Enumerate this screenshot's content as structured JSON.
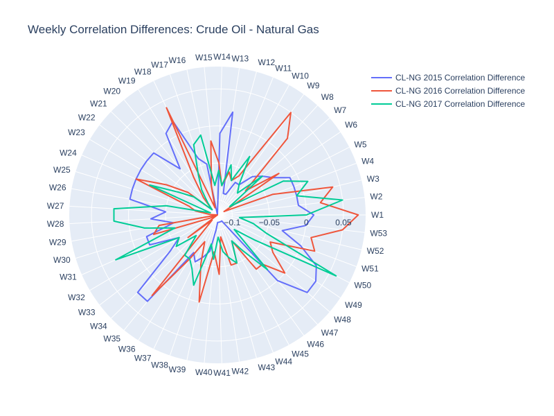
{
  "chart_data": {
    "type": "polar_line",
    "title": "Weekly Correlation Differences: Crude Oil - Natural Gas",
    "radial_range": [
      -0.12,
      0.08
    ],
    "radial_ticks": [
      -0.1,
      -0.05,
      0,
      0.05
    ],
    "radial_tick_labels": [
      "−0.1",
      "−0.05",
      "0",
      "0.05"
    ],
    "theta_direction": "counterclockwise",
    "theta_start": "W1 at east",
    "theta": [
      "W1",
      "W2",
      "W3",
      "W4",
      "W5",
      "W6",
      "W7",
      "W8",
      "W9",
      "W10",
      "W11",
      "W12",
      "W13",
      "W14",
      "W15",
      "W16",
      "W17",
      "W18",
      "W19",
      "W20",
      "W21",
      "W22",
      "W23",
      "W24",
      "W25",
      "W26",
      "W27",
      "W28",
      "W29",
      "W30",
      "W31",
      "W32",
      "W33",
      "W34",
      "W35",
      "W36",
      "W37",
      "W38",
      "W39",
      "W40",
      "W41",
      "W42",
      "W43",
      "W44",
      "W45",
      "W46",
      "W47",
      "W48",
      "W49",
      "W50",
      "W51",
      "W52",
      "W53"
    ],
    "series": [
      {
        "name": "CL-NG 2015 Correlation Difference",
        "color": "#636efa",
        "values": [
          0.01,
          -0.01,
          -0.01,
          -0.01,
          -0.01,
          -0.03,
          -0.04,
          -0.05,
          -0.07,
          -0.07,
          -0.09,
          -0.09,
          0.02,
          -0.01,
          -0.12,
          -0.05,
          -0.04,
          0.02,
          0.01,
          -0.04,
          0.0,
          0.0,
          0.0,
          0.0,
          0.0,
          0.0,
          -0.05,
          -0.03,
          -0.06,
          -0.02,
          -0.02,
          -0.06,
          -0.04,
          0.03,
          0.03,
          -0.06,
          -0.05,
          -0.06,
          -0.07,
          -0.1,
          -0.11,
          -0.11,
          -0.11,
          -0.11,
          -0.11,
          -0.11,
          0.0,
          0.04,
          0.04,
          0.03,
          0.0,
          -0.03,
          0.0
        ]
      },
      {
        "name": "CL-NG 2016 Correlation Difference",
        "color": "#ef553b",
        "values": [
          0.07,
          0.02,
          0.04,
          -0.04,
          -0.11,
          -0.02,
          -0.07,
          0.02,
          0.05,
          -0.06,
          -0.07,
          -0.06,
          -0.08,
          -0.05,
          -0.02,
          -0.08,
          -0.11,
          0.04,
          -0.06,
          -0.09,
          -0.11,
          -0.07,
          -0.04,
          0.0,
          -0.08,
          -0.09,
          -0.11,
          -0.12,
          -0.04,
          -0.03,
          -0.11,
          -0.12,
          -0.07,
          -0.11,
          0.02,
          -0.05,
          -0.08,
          -0.05,
          0.0,
          -0.07,
          -0.04,
          -0.09,
          -0.05,
          -0.05,
          -0.08,
          -0.03,
          -0.03,
          0.0,
          -0.03,
          -0.04,
          0.02,
          0.01,
          0.05
        ]
      },
      {
        "name": "CL-NG 2017 Correlation Difference",
        "color": "#00cc96",
        "values": [
          0.0,
          0.05,
          -0.01,
          0.01,
          -0.02,
          -0.1,
          -0.04,
          -0.08,
          -0.07,
          -0.03,
          -0.07,
          -0.05,
          -0.08,
          -0.06,
          -0.08,
          -0.01,
          -0.02,
          -0.06,
          -0.08,
          -0.1,
          -0.11,
          -0.08,
          -0.06,
          -0.02,
          -0.11,
          -0.05,
          0.02,
          0.02,
          -0.02,
          -0.06,
          0.03,
          -0.06,
          -0.05,
          -0.08,
          -0.05,
          -0.05,
          -0.04,
          -0.02,
          -0.08,
          -0.06,
          -0.09,
          -0.07,
          -0.06,
          -0.05,
          -0.08,
          -0.06,
          -0.02,
          -0.09,
          -0.06,
          0.06,
          -0.05,
          -0.07,
          -0.09
        ]
      }
    ],
    "legend_position": "top-right"
  }
}
